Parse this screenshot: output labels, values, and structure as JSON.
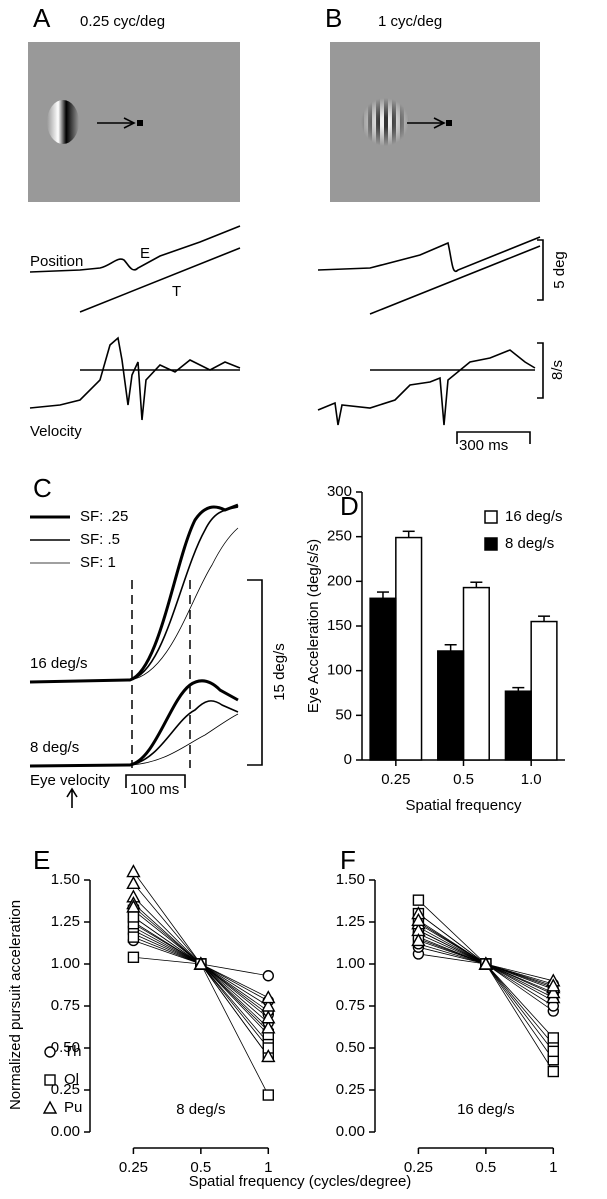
{
  "panel_labels": [
    "A",
    "B",
    "C",
    "D",
    "E",
    "F"
  ],
  "panel_a": {
    "title": "0.25 cyc/deg"
  },
  "panel_b": {
    "title": "1 cyc/deg"
  },
  "traces": {
    "position": "Position",
    "eye": "E",
    "target": "T",
    "velocity": "Velocity",
    "position_scale": "5 deg",
    "velocity_scale": "8/s",
    "time_scale": "300 ms"
  },
  "panel_c": {
    "legend": [
      "SF: .25",
      "SF: .5",
      "SF: 1"
    ],
    "speeds": [
      "16 deg/s",
      "8 deg/s"
    ],
    "trace_label": "Eye velocity",
    "velocity_scale": "15 deg/s",
    "time_scale": "100 ms"
  },
  "shared": {
    "ylabel": "Normalized pursuit acceleration",
    "xlabel": "Spatial frequency (cycles/degree)"
  },
  "chart_data": [
    {
      "type": "bar",
      "xlabel": "Spatial frequency",
      "ylabel": "Eye Acceleration (deg/s/s)",
      "categories": [
        "0.25",
        "0.5",
        "1.0"
      ],
      "series": [
        {
          "name": "16 deg/s",
          "color": "#ffffff",
          "values": [
            249,
            193,
            155
          ],
          "errors": [
            7,
            6,
            6
          ]
        },
        {
          "name": "8 deg/s",
          "color": "#000000",
          "values": [
            181,
            122,
            77
          ],
          "errors": [
            7,
            7,
            4
          ]
        }
      ],
      "ylim": [
        0,
        300
      ],
      "yticks": [
        0,
        50,
        100,
        150,
        200,
        250,
        300
      ],
      "legend": "upper right"
    },
    {
      "type": "scatter",
      "annotation": "8 deg/s",
      "x": [
        0.25,
        0.5,
        1
      ],
      "xlim": [
        0.16,
        1.25
      ],
      "xticks": [
        0.25,
        0.5,
        1
      ],
      "xlog": true,
      "ylim": [
        0,
        1.5
      ],
      "yticks": [
        {
          "value": 0,
          "label": "0.00"
        },
        {
          "value": 0.25,
          "label": "0.25"
        },
        {
          "value": 0.5,
          "label": "0.50"
        },
        {
          "value": 0.75,
          "label": "0.75"
        },
        {
          "value": 1,
          "label": "1.00"
        },
        {
          "value": 1.25,
          "label": "1.25"
        },
        {
          "value": 1.5,
          "label": "1.50"
        }
      ],
      "legend": "lower left",
      "series": [
        {
          "name": "Th",
          "marker": "circle",
          "values": [
            [
              1.18,
              1,
              0.93
            ],
            [
              1.22,
              1,
              0.78
            ],
            [
              1.25,
              1,
              0.7
            ],
            [
              1.14,
              1,
              0.65
            ],
            [
              1.28,
              1,
              0.6
            ],
            [
              1.2,
              1,
              0.72
            ]
          ]
        },
        {
          "name": "Ol",
          "marker": "square",
          "values": [
            [
              1.04,
              1,
              0.22
            ],
            [
              1.32,
              1,
              0.45
            ],
            [
              1.24,
              1,
              0.53
            ],
            [
              1.28,
              1,
              0.58
            ],
            [
              1.16,
              1,
              0.5
            ]
          ]
        },
        {
          "name": "Pu",
          "marker": "triangle",
          "values": [
            [
              1.55,
              1,
              0.45
            ],
            [
              1.48,
              1,
              0.62
            ],
            [
              1.4,
              1,
              0.75
            ],
            [
              1.36,
              1,
              0.8
            ],
            [
              1.34,
              1,
              0.68
            ]
          ]
        }
      ]
    },
    {
      "type": "scatter",
      "annotation": "16 deg/s",
      "x": [
        0.25,
        0.5,
        1
      ],
      "xlim": [
        0.16,
        1.25
      ],
      "xticks": [
        0.25,
        0.5,
        1
      ],
      "xlog": true,
      "ylim": [
        0,
        1.5
      ],
      "yticks": [
        {
          "value": 0,
          "label": "0.00"
        },
        {
          "value": 0.25,
          "label": "0.25"
        },
        {
          "value": 0.5,
          "label": "0.50"
        },
        {
          "value": 0.75,
          "label": "0.75"
        },
        {
          "value": 1,
          "label": "1.00"
        },
        {
          "value": 1.25,
          "label": "1.25"
        },
        {
          "value": 1.5,
          "label": "1.50"
        }
      ],
      "series": [
        {
          "marker": "circle",
          "values": [
            [
              1.06,
              1,
              0.72
            ],
            [
              1.1,
              1,
              0.82
            ],
            [
              1.15,
              1,
              0.78
            ],
            [
              1.18,
              1,
              0.85
            ],
            [
              1.22,
              1,
              0.88
            ],
            [
              1.12,
              1,
              0.75
            ]
          ]
        },
        {
          "marker": "square",
          "values": [
            [
              1.38,
              1,
              0.36
            ],
            [
              1.25,
              1,
              0.43
            ],
            [
              1.2,
              1,
              0.52
            ],
            [
              1.16,
              1,
              0.56
            ],
            [
              1.3,
              1,
              0.48
            ]
          ]
        },
        {
          "marker": "triangle",
          "values": [
            [
              1.3,
              1,
              0.9
            ],
            [
              1.24,
              1,
              0.86
            ],
            [
              1.2,
              1,
              0.8
            ],
            [
              1.26,
              1,
              0.83
            ],
            [
              1.14,
              1,
              0.87
            ]
          ]
        }
      ]
    }
  ]
}
